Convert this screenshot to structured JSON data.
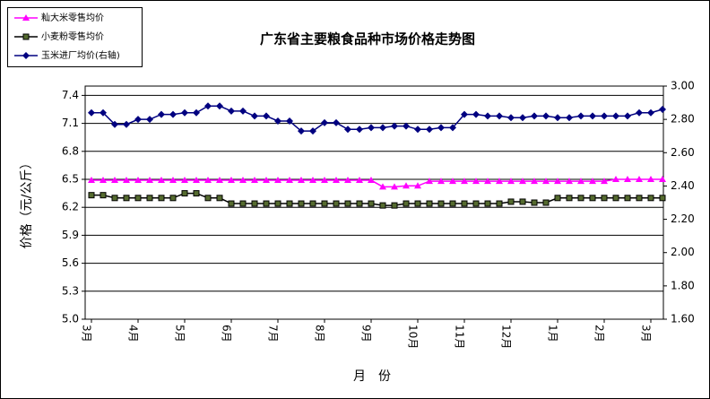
{
  "chart_data": {
    "type": "line",
    "title": "广东省主要粮食品种市场价格走势图",
    "xlabel": "月　份",
    "ylabel": "价格（元/公斤）",
    "categories": [
      "3月",
      null,
      null,
      null,
      "4月",
      null,
      null,
      null,
      "5月",
      null,
      null,
      null,
      "6月",
      null,
      null,
      null,
      "7月",
      null,
      null,
      null,
      "8月",
      null,
      null,
      null,
      "9月",
      null,
      null,
      null,
      "10月",
      null,
      null,
      null,
      "11月",
      null,
      null,
      null,
      "12月",
      null,
      null,
      null,
      "1月",
      null,
      null,
      null,
      "2月",
      null,
      null,
      null,
      "3月",
      null
    ],
    "series": [
      {
        "name": "籼大米零售均价",
        "color": "#ff00ff",
        "marker": "triangle",
        "values": [
          6.49,
          6.49,
          6.49,
          6.49,
          6.49,
          6.49,
          6.49,
          6.49,
          6.49,
          6.49,
          6.49,
          6.49,
          6.49,
          6.49,
          6.49,
          6.49,
          6.49,
          6.49,
          6.49,
          6.49,
          6.49,
          6.49,
          6.49,
          6.49,
          6.49,
          6.42,
          6.42,
          6.43,
          6.43,
          6.48,
          6.48,
          6.48,
          6.48,
          6.48,
          6.48,
          6.48,
          6.48,
          6.48,
          6.48,
          6.48,
          6.48,
          6.48,
          6.48,
          6.48,
          6.48,
          6.5,
          6.5,
          6.5,
          6.5,
          6.5
        ]
      },
      {
        "name": "小麦粉零售均价",
        "color": "#000000",
        "marker": "square",
        "values": [
          6.33,
          6.33,
          6.3,
          6.3,
          6.3,
          6.3,
          6.3,
          6.3,
          6.35,
          6.35,
          6.3,
          6.3,
          6.24,
          6.24,
          6.24,
          6.24,
          6.24,
          6.24,
          6.24,
          6.24,
          6.24,
          6.24,
          6.24,
          6.24,
          6.24,
          6.22,
          6.22,
          6.24,
          6.24,
          6.24,
          6.24,
          6.24,
          6.24,
          6.24,
          6.24,
          6.24,
          6.26,
          6.26,
          6.25,
          6.25,
          6.3,
          6.3,
          6.3,
          6.3,
          6.3,
          6.3,
          6.3,
          6.3,
          6.3,
          6.3
        ]
      },
      {
        "name": "玉米进厂均价(右轴)",
        "color": "#000080",
        "marker": "diamond",
        "axis": "y2",
        "values": [
          2.84,
          2.84,
          2.77,
          2.77,
          2.8,
          2.8,
          2.83,
          2.83,
          2.84,
          2.84,
          2.88,
          2.88,
          2.85,
          2.85,
          2.82,
          2.82,
          2.79,
          2.79,
          2.73,
          2.73,
          2.78,
          2.78,
          2.74,
          2.74,
          2.75,
          2.75,
          2.76,
          2.76,
          2.74,
          2.74,
          2.75,
          2.75,
          2.83,
          2.83,
          2.82,
          2.82,
          2.81,
          2.81,
          2.82,
          2.82,
          2.81,
          2.81,
          2.82,
          2.82,
          2.82,
          2.82,
          2.82,
          2.84,
          2.84,
          2.86
        ]
      }
    ],
    "ylim": [
      5.0,
      7.5
    ],
    "yticks": [
      {
        "value": 5,
        "label": "5.0"
      },
      5.3,
      5.6,
      5.9,
      6.2,
      6.5,
      6.8,
      7.1,
      7.4
    ],
    "y2lim": [
      1.6,
      3.0
    ],
    "y2ticks": [
      {
        "value": 1.6,
        "label": "1.60"
      },
      {
        "value": 1.8,
        "label": "1.80"
      },
      {
        "value": 2.0,
        "label": "2.00"
      },
      {
        "value": 2.2,
        "label": "2.20"
      },
      {
        "value": 2.4,
        "label": "2.40"
      },
      {
        "value": 2.6,
        "label": "2.60"
      },
      {
        "value": 2.8,
        "label": "2.80"
      },
      {
        "value": 3.0,
        "label": "3.00"
      }
    ],
    "grid": true,
    "legend": "top-left"
  }
}
